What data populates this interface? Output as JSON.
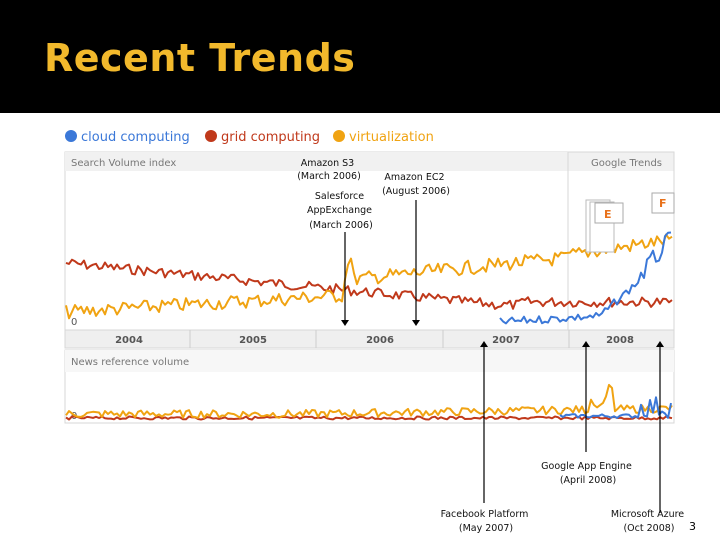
{
  "slide": {
    "title": "Recent Trends",
    "page_number": "3"
  },
  "chart_data": {
    "type": "line",
    "legend": {
      "placement": "top-left",
      "entries": [
        "cloud computing",
        "grid computing",
        "virtualization"
      ]
    },
    "series": [
      {
        "name": "cloud computing",
        "color": "#3b78d8"
      },
      {
        "name": "grid computing",
        "color": "#c0391b"
      },
      {
        "name": "virtualization",
        "color": "#f0a312"
      }
    ],
    "panels": [
      {
        "label": "Search Volume index",
        "baseline_label": "0"
      },
      {
        "label": "News reference volume",
        "baseline_label": "0"
      }
    ],
    "source_label": "Google Trends",
    "x_tick_labels": [
      "2004",
      "2005",
      "2006",
      "2007",
      "2008"
    ],
    "news_markers": [
      "E",
      "F"
    ],
    "annotations": [
      {
        "lines": [
          "Amazon S3",
          "(March 2006)"
        ]
      },
      {
        "lines": [
          "Amazon EC2",
          "(August 2006)"
        ]
      },
      {
        "lines": [
          "Salesforce",
          "AppExchange",
          "(March 2006)"
        ]
      },
      {
        "lines": [
          "Google App Engine",
          "(April 2008)"
        ]
      },
      {
        "lines": [
          "Facebook Platform",
          "(May 2007)"
        ]
      },
      {
        "lines": [
          "Microsoft Azure",
          "(Oct 2008)"
        ]
      }
    ]
  }
}
